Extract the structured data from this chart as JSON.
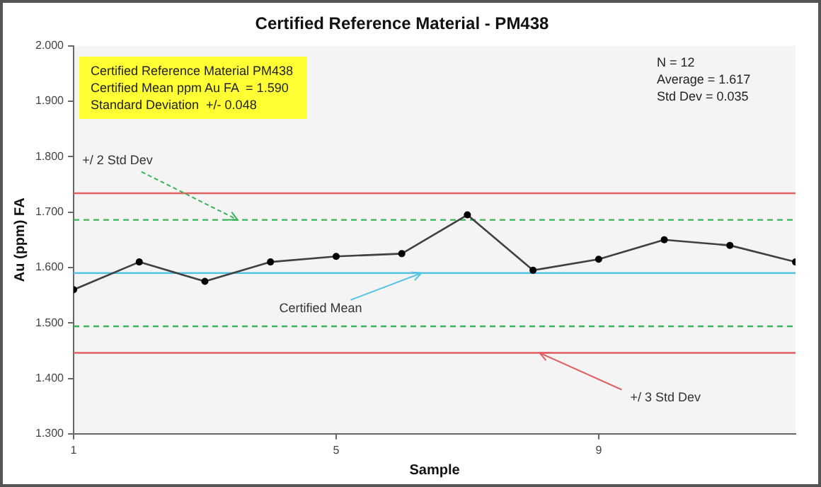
{
  "chart_data": {
    "type": "line",
    "title": "Certified Reference Material - PM438",
    "xlabel": "Sample",
    "ylabel": "Au (ppm) FA",
    "x": [
      1,
      2,
      3,
      4,
      5,
      6,
      7,
      8,
      9,
      10,
      11,
      12
    ],
    "series": [
      {
        "color": "#404040",
        "values": [
          1.56,
          1.61,
          1.575,
          1.61,
          1.62,
          1.625,
          1.695,
          1.595,
          1.615,
          1.65,
          1.64,
          1.61
        ]
      }
    ],
    "marker": "circle",
    "line_style": "solid",
    "grid": false,
    "legend": false,
    "xlim": [
      1,
      12
    ],
    "xticks": [
      1,
      5,
      9
    ],
    "ylim": [
      1.3,
      2.0
    ],
    "yticks": [
      {
        "value": 1.3,
        "label": "1.300"
      },
      {
        "value": 1.4,
        "label": "1.400"
      },
      {
        "value": 1.5,
        "label": "1.500"
      },
      {
        "value": 1.6,
        "label": "1.600"
      },
      {
        "value": 1.7,
        "label": "1.700"
      },
      {
        "value": 1.8,
        "label": "1.800"
      },
      {
        "value": 1.9,
        "label": "1.900"
      },
      {
        "value": 2.0,
        "label": "2.000"
      }
    ],
    "ref_lines": [
      {
        "axis": "y",
        "value": 1.734,
        "color": "#e06060",
        "line_style": "solid"
      },
      {
        "axis": "y",
        "value": 1.686,
        "color": "#3cb35a",
        "line_style": "dashed"
      },
      {
        "axis": "y",
        "value": 1.59,
        "color": "#55c3e6",
        "line_style": "solid"
      },
      {
        "axis": "y",
        "value": 1.494,
        "color": "#3cb35a",
        "line_style": "dashed"
      },
      {
        "axis": "y",
        "value": 1.446,
        "color": "#e06060",
        "line_style": "solid"
      }
    ],
    "annotations": [
      {
        "text": "+/ 2 Std Dev",
        "x": 3.5,
        "y": 1.686
      },
      {
        "text": "Certified Mean",
        "x": 6.3,
        "y": 1.59
      },
      {
        "text": "+/ 3 Std Dev",
        "x": 8.1,
        "y": 1.446
      },
      "Certified Reference Material PM438\nCertified Mean ppm Au FA  = 1.590\nStandard Deviation  +/- 0.048",
      "N = 12\nAverage = 1.617\nStd Dev = 0.035"
    ]
  }
}
